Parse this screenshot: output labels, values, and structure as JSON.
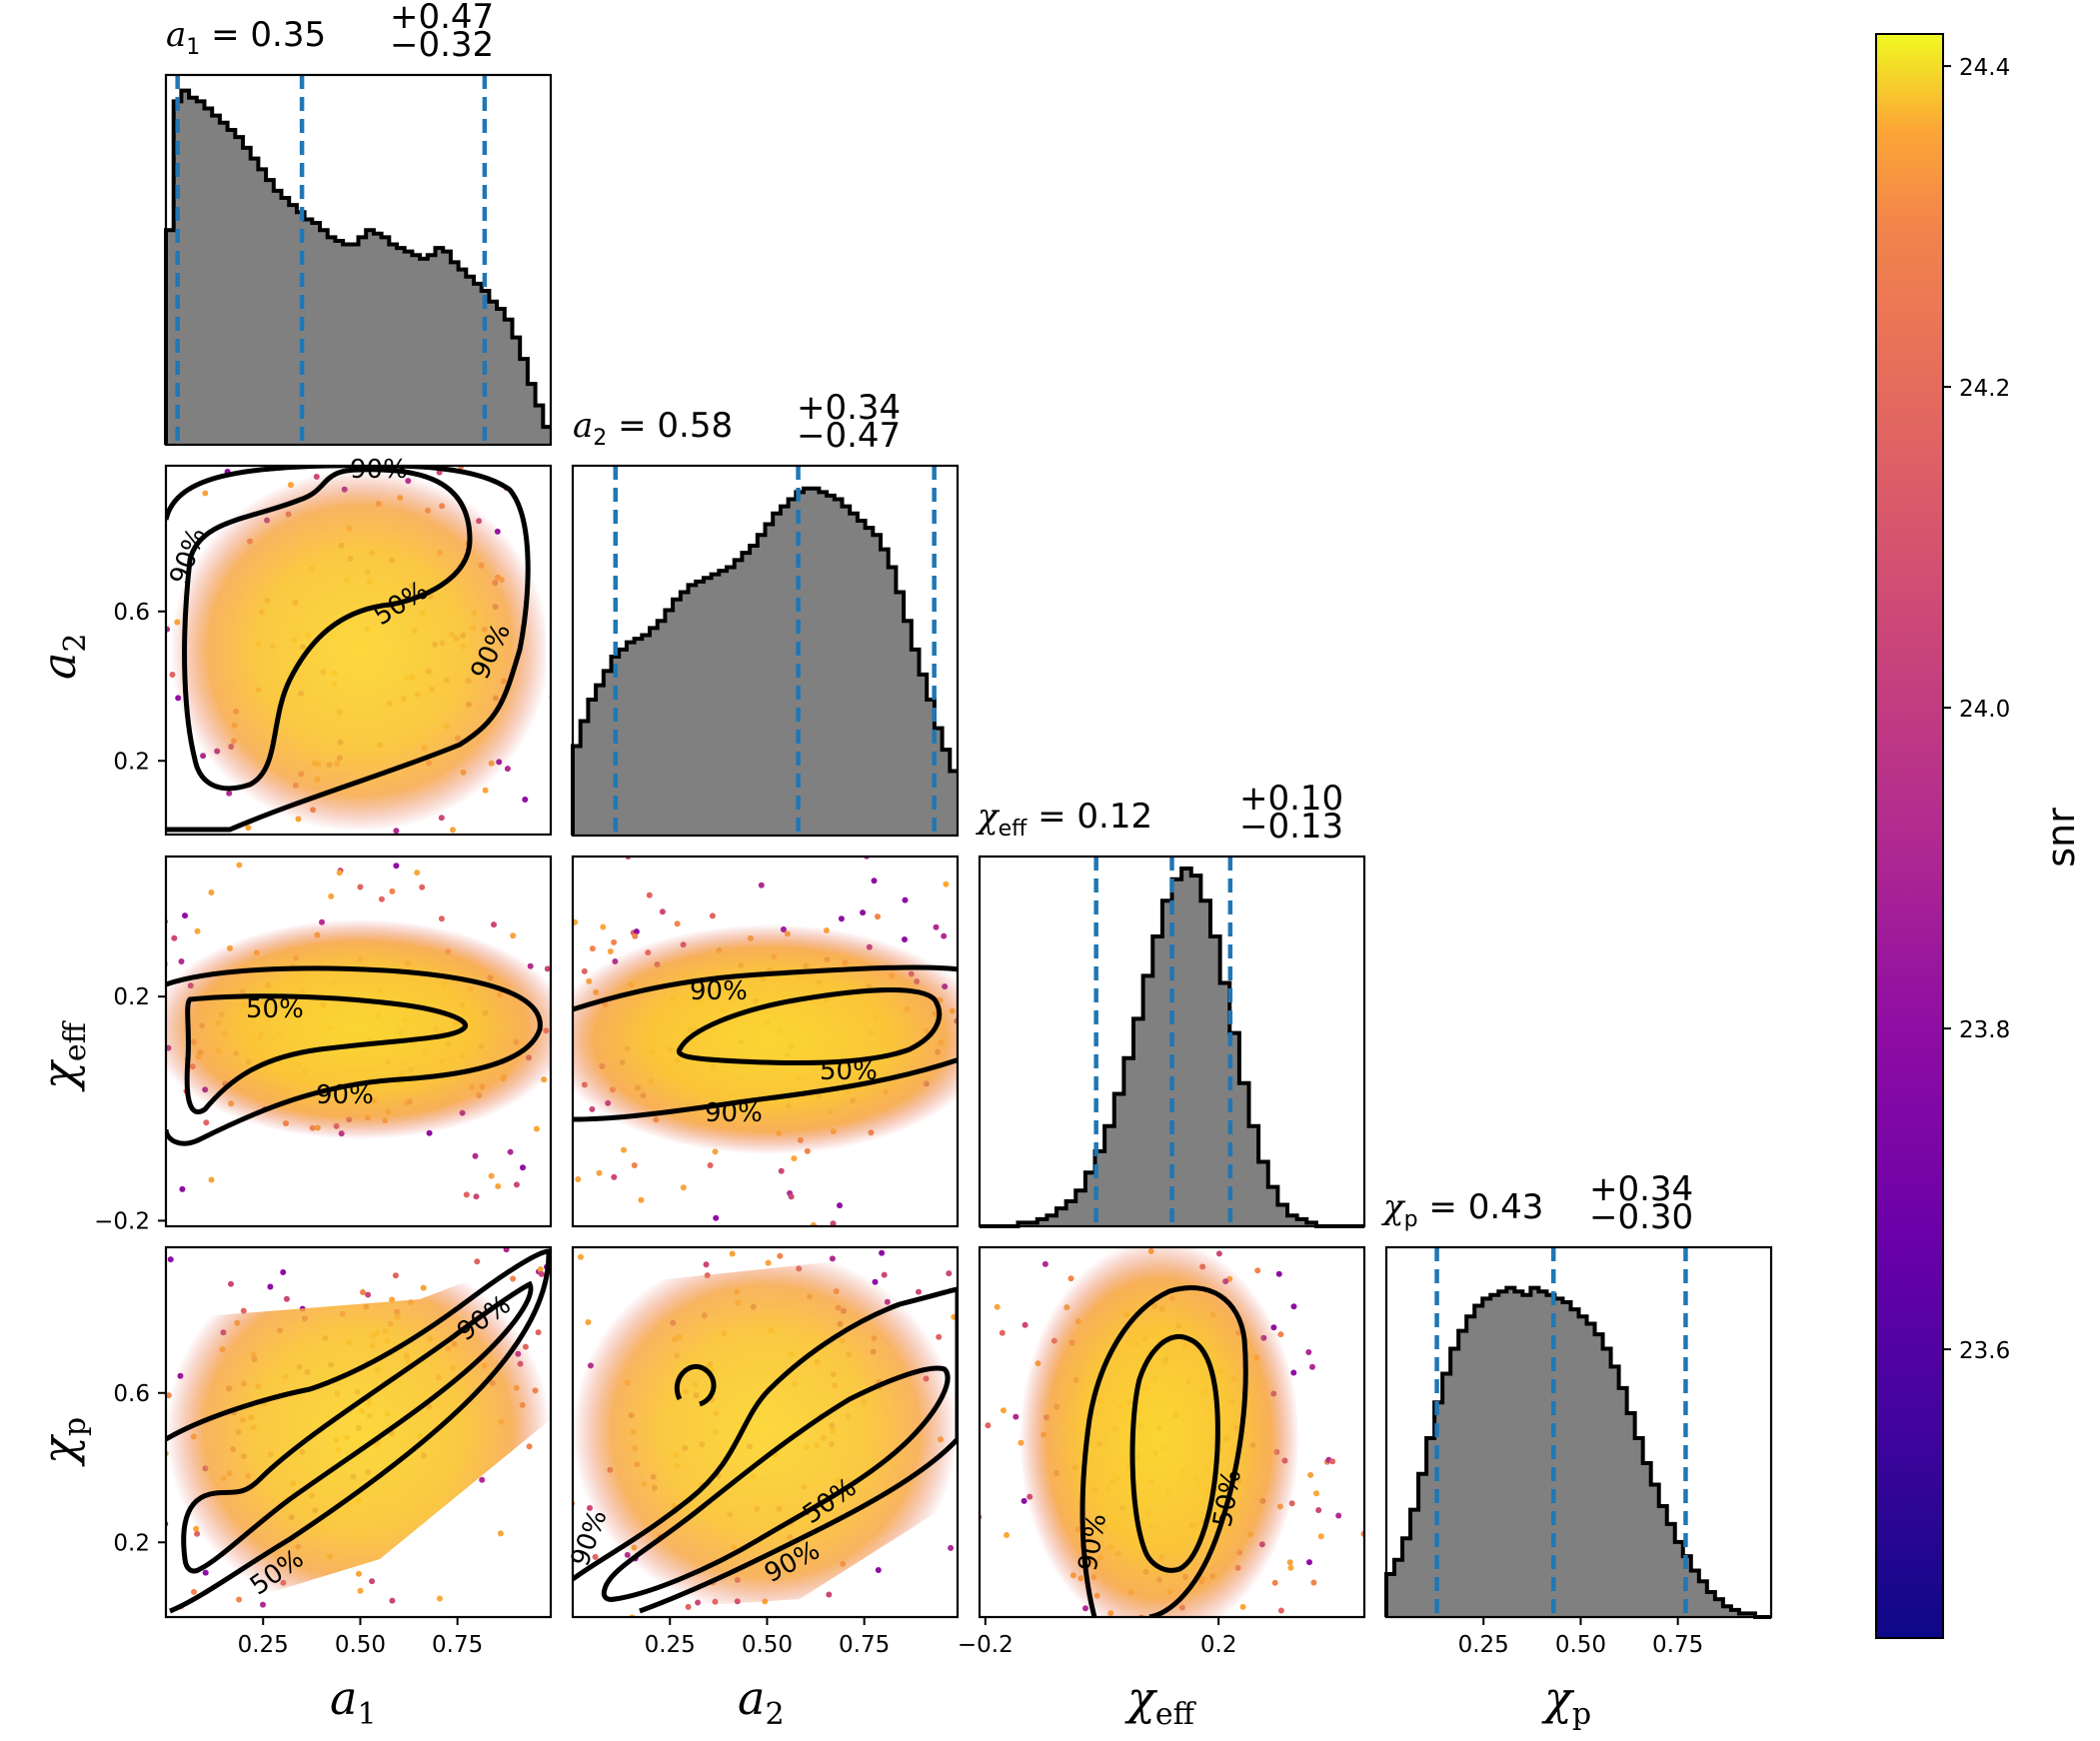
{
  "chart_data": {
    "type": "corner",
    "parameters": [
      {
        "key": "a1",
        "axis_label": {
          "sym": "a",
          "sub": "1"
        },
        "range": [
          0.0,
          0.99
        ],
        "title": {
          "sym": "a",
          "sub": "1",
          "eq": " = ",
          "median": "0.35",
          "plus": "+0.47",
          "minus": "−0.32"
        },
        "quantiles": [
          0.03,
          0.35,
          0.82
        ],
        "ticks": [
          {
            "value": 0.25,
            "label": "0.25"
          },
          {
            "value": 0.5,
            "label": "0.50"
          },
          {
            "value": 0.75,
            "label": "0.75"
          }
        ],
        "hist": [
          0.6,
          0.96,
          0.99,
          0.97,
          0.96,
          0.94,
          0.92,
          0.9,
          0.88,
          0.86,
          0.83,
          0.8,
          0.77,
          0.74,
          0.71,
          0.69,
          0.67,
          0.65,
          0.63,
          0.62,
          0.6,
          0.58,
          0.57,
          0.56,
          0.56,
          0.58,
          0.6,
          0.59,
          0.58,
          0.56,
          0.55,
          0.54,
          0.53,
          0.52,
          0.53,
          0.55,
          0.54,
          0.51,
          0.49,
          0.47,
          0.45,
          0.43,
          0.4,
          0.38,
          0.35,
          0.3,
          0.24,
          0.17,
          0.11,
          0.05
        ]
      },
      {
        "key": "a2",
        "axis_label": {
          "sym": "a",
          "sub": "2"
        },
        "range": [
          0.0,
          0.99
        ],
        "title": {
          "sym": "a",
          "sub": "2",
          "eq": " = ",
          "median": "0.58",
          "plus": "+0.34",
          "minus": "−0.47"
        },
        "quantiles": [
          0.11,
          0.58,
          0.93
        ],
        "ticks": [
          {
            "value": 0.2,
            "label": "0.2"
          },
          {
            "value": 0.6,
            "label": "0.6"
          }
        ],
        "xticks": [
          {
            "value": 0.25,
            "label": "0.25"
          },
          {
            "value": 0.5,
            "label": "0.50"
          },
          {
            "value": 0.75,
            "label": "0.75"
          }
        ],
        "hist": [
          0.25,
          0.32,
          0.38,
          0.42,
          0.46,
          0.5,
          0.52,
          0.54,
          0.55,
          0.56,
          0.58,
          0.6,
          0.63,
          0.66,
          0.68,
          0.7,
          0.71,
          0.72,
          0.73,
          0.74,
          0.75,
          0.77,
          0.79,
          0.81,
          0.84,
          0.87,
          0.9,
          0.92,
          0.94,
          0.96,
          0.97,
          0.97,
          0.96,
          0.95,
          0.94,
          0.92,
          0.9,
          0.88,
          0.86,
          0.84,
          0.8,
          0.75,
          0.68,
          0.6,
          0.52,
          0.45,
          0.38,
          0.3,
          0.24,
          0.18
        ]
      },
      {
        "key": "chi_eff",
        "axis_label": {
          "sym": "χ",
          "sub": "eff"
        },
        "range": [
          -0.21,
          0.45
        ],
        "title": {
          "sym": "χ",
          "sub": "eff",
          "eq": " = ",
          "median": "0.12",
          "plus": "+0.10",
          "minus": "−0.13"
        },
        "quantiles": [
          -0.01,
          0.12,
          0.22
        ],
        "ticks": [
          {
            "value": -0.2,
            "label": "−0.2"
          },
          {
            "value": 0.2,
            "label": "0.2"
          }
        ],
        "hist": [
          0.0,
          0.0,
          0.0,
          0.0,
          0.01,
          0.01,
          0.02,
          0.03,
          0.05,
          0.07,
          0.1,
          0.15,
          0.21,
          0.28,
          0.37,
          0.47,
          0.58,
          0.7,
          0.81,
          0.91,
          0.97,
          1.0,
          0.98,
          0.91,
          0.81,
          0.68,
          0.54,
          0.4,
          0.28,
          0.18,
          0.11,
          0.06,
          0.03,
          0.02,
          0.01,
          0.0,
          0.0,
          0.0,
          0.0,
          0.0
        ]
      },
      {
        "key": "chi_p",
        "axis_label": {
          "sym": "χ",
          "sub": "p"
        },
        "range": [
          0.0,
          0.99
        ],
        "title": {
          "sym": "χ",
          "sub": "p",
          "eq": " = ",
          "median": "0.43",
          "plus": "+0.34",
          "minus": "−0.30"
        },
        "quantiles": [
          0.13,
          0.43,
          0.77
        ],
        "ticks": [
          {
            "value": 0.2,
            "label": "0.2"
          },
          {
            "value": 0.6,
            "label": "0.6"
          }
        ],
        "xticks": [
          {
            "value": 0.25,
            "label": "0.25"
          },
          {
            "value": 0.5,
            "label": "0.50"
          },
          {
            "value": 0.75,
            "label": "0.75"
          }
        ],
        "hist": [
          0.12,
          0.16,
          0.22,
          0.3,
          0.4,
          0.5,
          0.6,
          0.68,
          0.75,
          0.8,
          0.84,
          0.87,
          0.89,
          0.9,
          0.91,
          0.92,
          0.91,
          0.9,
          0.92,
          0.91,
          0.9,
          0.89,
          0.88,
          0.86,
          0.84,
          0.82,
          0.79,
          0.75,
          0.7,
          0.64,
          0.57,
          0.5,
          0.43,
          0.37,
          0.31,
          0.26,
          0.21,
          0.17,
          0.13,
          0.1,
          0.07,
          0.05,
          0.03,
          0.02,
          0.01,
          0.01,
          0.0,
          0.0
        ]
      }
    ],
    "hist_color": "#808080",
    "quantile_color": "#1f77b4",
    "contour_levels": [
      "50%",
      "90%"
    ],
    "colorbar": {
      "label": "snr",
      "colormap": "plasma",
      "range": [
        23.42,
        24.42
      ],
      "ticks": [
        "23.6",
        "23.8",
        "24.0",
        "24.2",
        "24.4"
      ]
    }
  }
}
